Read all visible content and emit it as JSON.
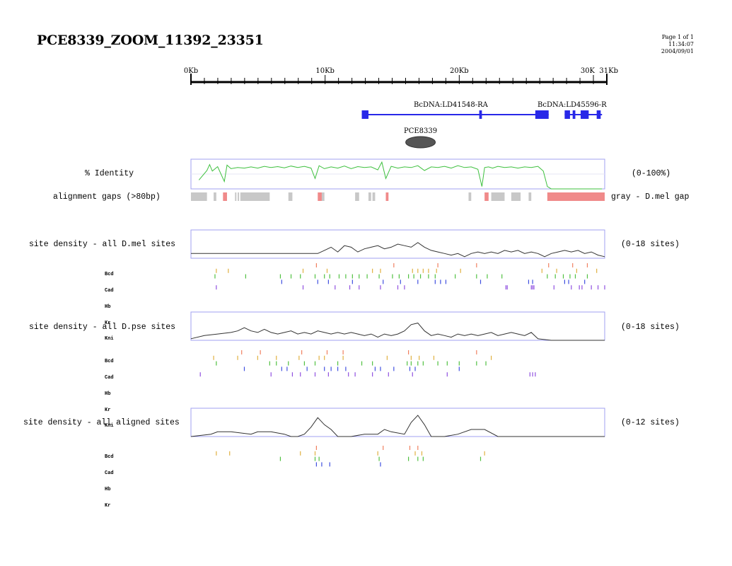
{
  "title": "PCE8339_ZOOM_11392_23351",
  "page_info": {
    "page": "Page 1 of 1",
    "time": "11:34:07",
    "date": "2004/09/01"
  },
  "scale": {
    "ticks": [
      {
        "kb": 0,
        "label": "0Kb"
      },
      {
        "kb": 10,
        "label": "10Kb"
      },
      {
        "kb": 20,
        "label": "20Kb"
      },
      {
        "kb": 30,
        "label": "30K"
      },
      {
        "kb": 31,
        "label": "31Kb"
      }
    ],
    "max_kb": 31
  },
  "genes": [
    {
      "label": "BcDNA:LD41548-RA",
      "start_kb": 12.8,
      "end_kb": 26.8,
      "exons": [
        [
          12.8,
          13.3
        ],
        [
          21.6,
          21.8
        ],
        [
          25.8,
          26.8
        ]
      ]
    },
    {
      "label": "BcDNA:LD45596-R",
      "start_kb": 28.0,
      "end_kb": 30.8,
      "exons": [
        [
          28.0,
          28.4
        ],
        [
          28.6,
          28.8
        ],
        [
          29.2,
          29.8
        ],
        [
          30.4,
          30.7
        ]
      ]
    }
  ],
  "enhancer": {
    "label": "PCE8339",
    "center_kb": 17.2
  },
  "legend": {
    "identity_label": "% Identity",
    "identity_range": "(0-100%)",
    "gaps_label": "alignment gaps (>80bp)",
    "gaps_note": "gray - D.mel gap",
    "dmel_label": "site density - all D.mel sites",
    "dmel_range": "(0-18 sites)",
    "dpse_label": "site density - all D.pse sites",
    "dpse_range": "(0-18 sites)",
    "aligned_label": "site density - all aligned sites",
    "aligned_range": "(0-12 sites)"
  },
  "tf_labels_5": [
    "Bcd",
    "Cad",
    "Hb",
    "Kr",
    "Kni"
  ],
  "tf_labels_4": [
    "Bcd",
    "Cad",
    "Hb",
    "Kr"
  ],
  "tf_colors": {
    "Bcd": "#f08060",
    "Cad": "#e0b040",
    "Hb": "#50c040",
    "Kr": "#4050e0",
    "Kni": "#9050e0"
  },
  "chart_data": [
    {
      "type": "line",
      "title": "% Identity",
      "range": "(0-100%)",
      "ylim": [
        0,
        100
      ],
      "x_kb": [
        0.6,
        1.2,
        1.4,
        1.6,
        2.0,
        2.5,
        2.7,
        3.0,
        3.5,
        4.0,
        4.5,
        5.0,
        5.5,
        6.0,
        6.5,
        7.0,
        7.5,
        8.0,
        8.5,
        9.0,
        9.3,
        9.6,
        10.0,
        10.5,
        11.0,
        11.5,
        12.0,
        12.5,
        13.0,
        13.5,
        14.0,
        14.3,
        14.6,
        15.0,
        15.5,
        16.0,
        16.5,
        17.0,
        17.5,
        18.0,
        18.5,
        19.0,
        19.5,
        20.0,
        20.5,
        21.0,
        21.5,
        21.8,
        22.0,
        22.3,
        22.6,
        23.0,
        23.5,
        24.0,
        24.5,
        25.0,
        25.5,
        26.0,
        26.4,
        26.7,
        27.0,
        28.0,
        29.0,
        30.0,
        30.8
      ],
      "y": [
        30,
        62,
        82,
        60,
        75,
        25,
        80,
        68,
        72,
        70,
        74,
        70,
        76,
        72,
        75,
        71,
        77,
        72,
        76,
        70,
        35,
        78,
        68,
        74,
        70,
        77,
        68,
        75,
        72,
        74,
        64,
        90,
        35,
        76,
        70,
        74,
        72,
        78,
        62,
        74,
        72,
        76,
        70,
        78,
        72,
        74,
        66,
        8,
        72,
        74,
        70,
        76,
        72,
        74,
        70,
        74,
        72,
        76,
        60,
        8,
        0,
        0,
        0,
        0,
        0
      ]
    },
    {
      "type": "table",
      "title": "alignment gaps (>80bp)",
      "gray_segments_kb": [
        [
          0.0,
          1.2
        ],
        [
          1.7,
          1.9
        ],
        [
          2.5,
          2.7
        ],
        [
          3.3,
          3.4
        ],
        [
          3.5,
          3.6
        ],
        [
          3.7,
          5.9
        ],
        [
          7.3,
          7.6
        ],
        [
          9.8,
          10.0
        ],
        [
          12.3,
          12.6
        ],
        [
          13.3,
          13.5
        ],
        [
          13.6,
          13.8
        ],
        [
          20.8,
          21.0
        ],
        [
          22.5,
          23.5
        ],
        [
          24.0,
          24.7
        ],
        [
          25.3,
          25.5
        ]
      ],
      "red_segments_kb": [
        [
          2.4,
          2.7
        ],
        [
          9.5,
          9.8
        ],
        [
          14.6,
          14.8
        ],
        [
          22.0,
          22.3
        ],
        [
          26.7,
          31.0
        ]
      ]
    },
    {
      "type": "area",
      "title": "site density - all D.mel sites",
      "range": "(0-18 sites)",
      "ylim": [
        0,
        18
      ],
      "x_kb": [
        0,
        1.5,
        2.5,
        3.5,
        4.5,
        5.5,
        6.5,
        7.5,
        8.0,
        8.5,
        9.0,
        9.5,
        10.0,
        10.5,
        11.0,
        11.5,
        12.0,
        12.5,
        13.0,
        13.5,
        14.0,
        14.5,
        15.0,
        15.5,
        16.0,
        16.5,
        17.0,
        17.5,
        18.0,
        18.5,
        19.0,
        19.5,
        20.0,
        20.5,
        21.0,
        21.5,
        22.0,
        22.5,
        23.0,
        23.5,
        24.0,
        24.5,
        25.0,
        25.5,
        26.0,
        26.5,
        27.0,
        27.5,
        28.0,
        28.5,
        29.0,
        29.5,
        30.0,
        30.5,
        31.0
      ],
      "y": [
        3,
        3,
        3,
        3,
        3,
        3,
        3,
        3,
        3,
        3,
        3,
        3,
        5,
        7,
        4,
        8,
        7,
        4,
        6,
        7,
        8,
        6,
        7,
        9,
        8,
        7,
        10,
        7,
        5,
        4,
        3,
        2,
        3,
        1,
        3,
        4,
        3,
        4,
        3,
        5,
        4,
        5,
        3,
        4,
        3,
        1,
        3,
        4,
        5,
        4,
        5,
        3,
        4,
        2,
        1
      ]
    },
    {
      "type": "table",
      "title": "D.mel TF binding sites",
      "rows": {
        "Bcd": [
          9.4,
          15.2,
          18.5,
          21.4,
          26.8,
          28.6,
          29.7
        ],
        "Cad": [
          1.9,
          2.8,
          8.4,
          10.2,
          13.6,
          14.2,
          16.6,
          17.0,
          17.4,
          17.8,
          18.4,
          20.2,
          26.3,
          27.4,
          28.9,
          30.4
        ],
        "Hb": [
          1.8,
          4.1,
          6.7,
          7.5,
          8.2,
          9.3,
          10.0,
          10.4,
          11.1,
          11.6,
          12.1,
          12.6,
          13.2,
          14.1,
          15.1,
          15.6,
          16.3,
          16.7,
          17.2,
          17.8,
          18.3,
          19.8,
          21.4,
          22.2,
          23.3,
          26.7,
          27.3,
          27.9,
          28.4,
          28.8,
          29.7
        ],
        "Kr": [
          6.8,
          9.5,
          10.3,
          12.1,
          14.4,
          15.7,
          17.0,
          18.3,
          18.7,
          19.1,
          21.7,
          25.3,
          25.6,
          28.0,
          28.3,
          29.5
        ],
        "Kni": [
          1.9,
          8.4,
          10.8,
          11.9,
          12.6,
          14.2,
          15.5,
          16.0,
          23.6,
          23.7,
          25.5,
          25.6,
          25.7,
          27.2,
          28.5,
          29.1,
          29.3,
          30.0,
          30.5,
          31.0
        ]
      }
    },
    {
      "type": "area",
      "title": "site density - all D.pse sites",
      "range": "(0-18 sites)",
      "ylim": [
        0,
        18
      ],
      "x_kb": [
        0,
        1.0,
        2.0,
        3.0,
        3.5,
        4.0,
        4.5,
        5.0,
        5.5,
        6.0,
        6.5,
        7.0,
        7.5,
        8.0,
        8.5,
        9.0,
        9.5,
        10.0,
        10.5,
        11.0,
        11.5,
        12.0,
        12.5,
        13.0,
        13.5,
        14.0,
        14.5,
        15.0,
        15.5,
        16.0,
        16.5,
        17.0,
        17.5,
        18.0,
        18.5,
        19.0,
        19.5,
        20.0,
        20.5,
        21.0,
        21.5,
        22.0,
        22.5,
        23.0,
        23.5,
        24.0,
        24.5,
        25.0,
        25.5,
        26.0,
        27.0,
        28.0,
        29.0,
        30.0,
        31.0
      ],
      "y": [
        1,
        3,
        4,
        5,
        6,
        8,
        6,
        5,
        7,
        5,
        4,
        5,
        6,
        4,
        5,
        4,
        6,
        5,
        4,
        5,
        4,
        5,
        4,
        3,
        4,
        2,
        4,
        3,
        4,
        6,
        10,
        11,
        6,
        3,
        4,
        3,
        2,
        4,
        3,
        4,
        3,
        4,
        5,
        3,
        4,
        5,
        4,
        3,
        5,
        1,
        0,
        0,
        0,
        0,
        0
      ]
    },
    {
      "type": "table",
      "title": "D.pse TF binding sites",
      "rows": {
        "Bcd": [
          3.8,
          5.2,
          8.3,
          10.2,
          11.4,
          16.3,
          21.4
        ],
        "Cad": [
          1.7,
          3.5,
          5.0,
          6.4,
          8.1,
          9.6,
          10.0,
          11.4,
          14.7,
          16.5,
          17.1,
          18.2,
          22.5
        ],
        "Hb": [
          1.9,
          5.9,
          6.4,
          7.3,
          8.5,
          9.3,
          11.0,
          12.8,
          13.6,
          16.2,
          16.5,
          17.0,
          17.4,
          18.5,
          19.2,
          20.1,
          21.4,
          22.1
        ],
        "Kr": [
          4.0,
          6.8,
          7.2,
          8.7,
          10.0,
          10.5,
          11.0,
          11.6,
          13.8,
          14.2,
          15.2,
          16.4,
          16.8,
          20.1
        ],
        "Kni": [
          0.7,
          6.0,
          7.6,
          8.2,
          9.3,
          10.3,
          11.8,
          12.3,
          13.6,
          14.8,
          16.6,
          19.2,
          25.4,
          25.6,
          25.8
        ]
      }
    },
    {
      "type": "area",
      "title": "site density - all aligned sites",
      "range": "(0-12 sites)",
      "ylim": [
        0,
        12
      ],
      "x_kb": [
        0,
        1.5,
        2.0,
        3.0,
        4.5,
        5.0,
        6.0,
        7.0,
        7.5,
        8.0,
        8.5,
        9.0,
        9.5,
        10.0,
        10.5,
        11.0,
        12.0,
        13.0,
        14.0,
        14.5,
        15.0,
        16.0,
        16.5,
        17.0,
        17.5,
        18.0,
        19.0,
        20.0,
        21.0,
        22.0,
        23.0,
        24.0,
        31.0
      ],
      "y": [
        0,
        1,
        2,
        2,
        1,
        2,
        2,
        1,
        0,
        0,
        1,
        4,
        8,
        5,
        3,
        0,
        0,
        1,
        1,
        3,
        2,
        1,
        6,
        9,
        5,
        0,
        0,
        1,
        3,
        3,
        0,
        0,
        0
      ]
    },
    {
      "type": "table",
      "title": "aligned TF binding sites",
      "rows": {
        "Bcd": [
          9.4,
          14.4,
          16.4,
          17.0
        ],
        "Cad": [
          1.9,
          2.9,
          8.2,
          9.3,
          14.0,
          16.8,
          17.3,
          22.0
        ],
        "Hb": [
          6.7,
          9.3,
          9.6,
          14.1,
          16.3,
          17.0,
          17.4,
          21.7
        ],
        "Kr": [
          9.4,
          9.8,
          10.4,
          14.2
        ]
      }
    }
  ]
}
